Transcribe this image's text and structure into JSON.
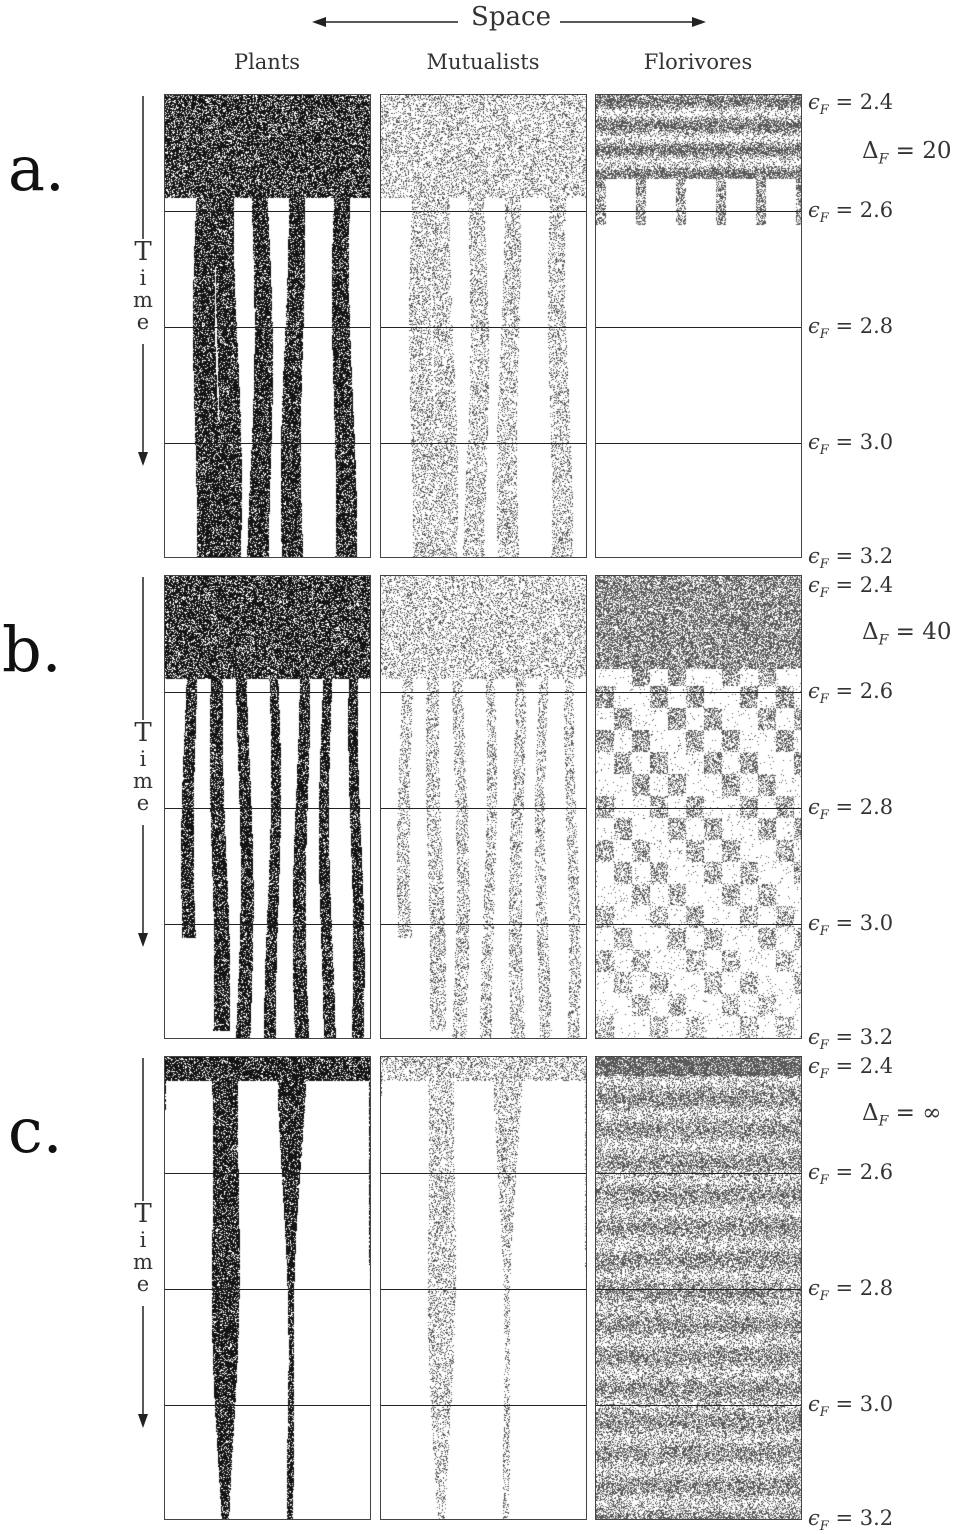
{
  "header": {
    "space_label": "Space",
    "columns": [
      "Plants",
      "Mutualists",
      "Florivores"
    ]
  },
  "axis": {
    "time_label": "Time",
    "epsilon_symbol": "ϵ",
    "epsilon_subscript": "F",
    "epsilon_ticks": [
      "2.4",
      "2.6",
      "2.8",
      "3.0",
      "3.2"
    ]
  },
  "panels": [
    {
      "label": "a.",
      "delta_symbol": "Δ",
      "delta_subscript": "F",
      "delta_value": "20"
    },
    {
      "label": "b.",
      "delta_symbol": "Δ",
      "delta_subscript": "F",
      "delta_value": "40"
    },
    {
      "label": "c.",
      "delta_symbol": "Δ",
      "delta_subscript": "F",
      "delta_value": "∞"
    }
  ],
  "colors": {
    "ink": "#111111",
    "frame": "#444444",
    "background": "#ffffff"
  }
}
